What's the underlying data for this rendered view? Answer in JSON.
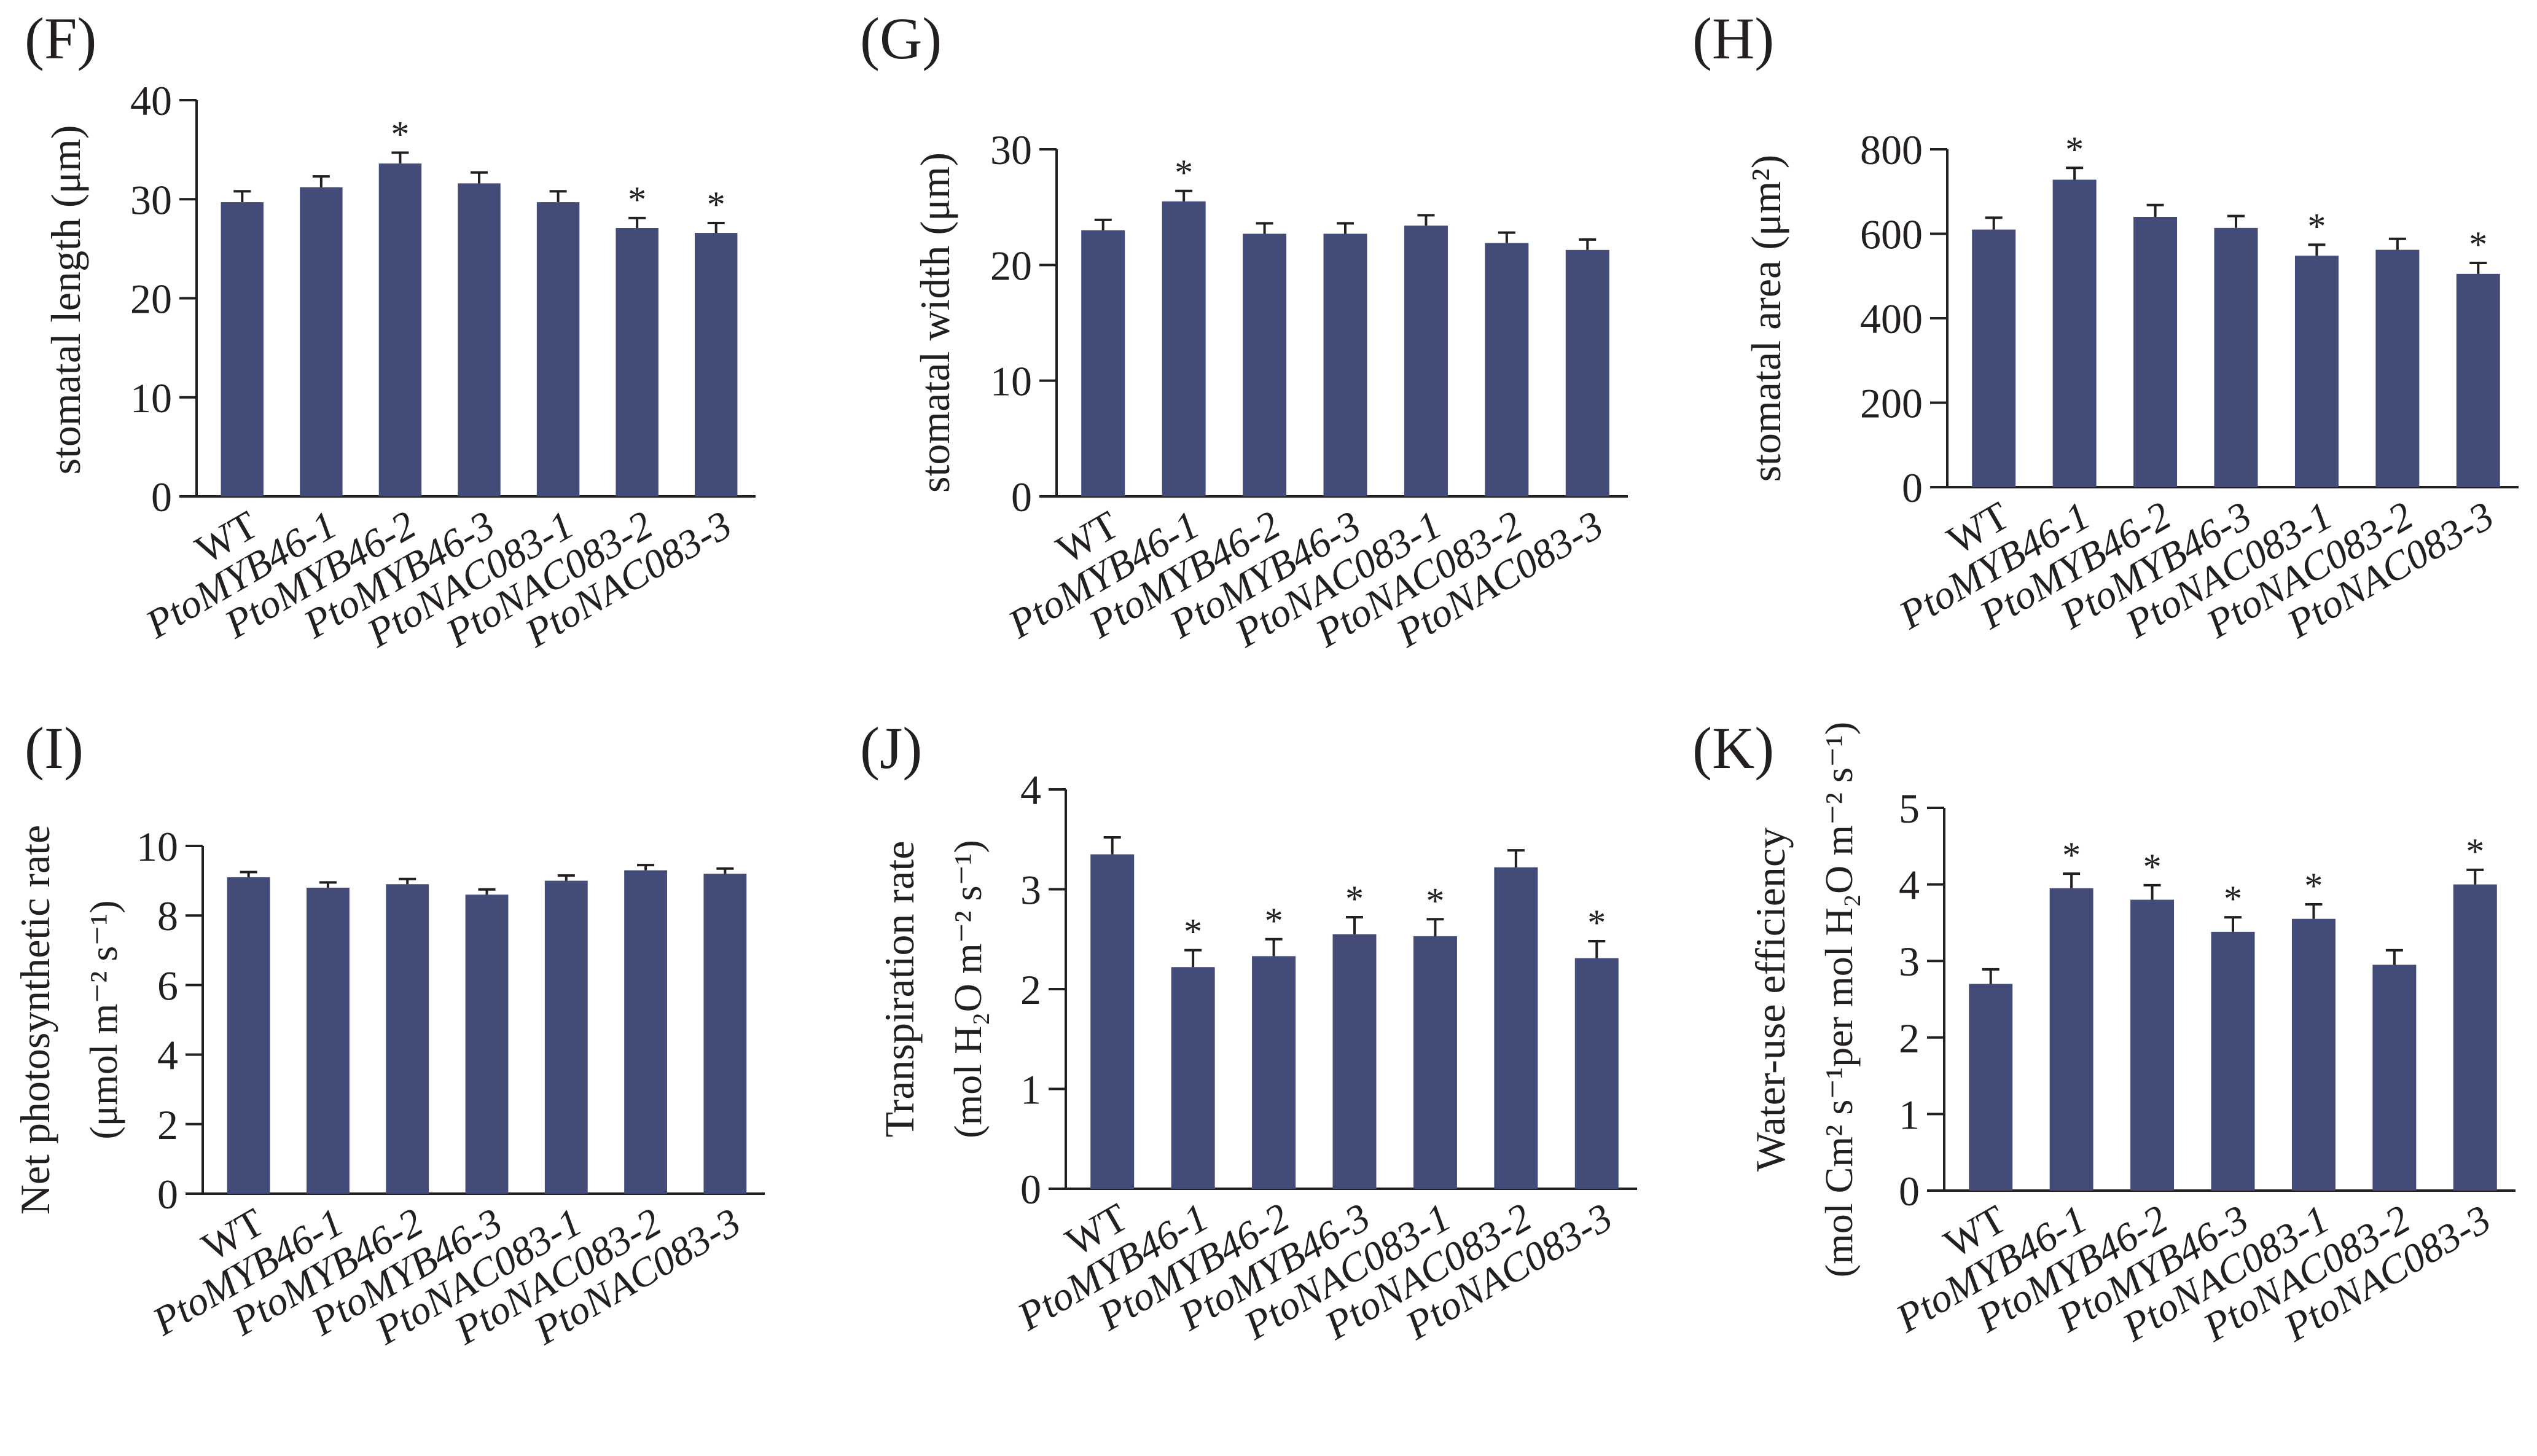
{
  "colors": {
    "bar": "#434c78",
    "axis": "#231f20",
    "text": "#231f20"
  },
  "categories_all": [
    "WT",
    "PtoMYB46-1",
    "PtoMYB46-2",
    "PtoMYB46-3",
    "PtoNAC083-1",
    "PtoNAC083-2",
    "PtoNAC083-3"
  ],
  "chart_data": [
    {
      "panel": "(F)",
      "type": "bar",
      "ylabel": "stomatal length (μm)",
      "categories": [
        "WT",
        "PtoMYB46-1",
        "PtoMYB46-2",
        "PtoMYB46-3",
        "PtoNAC083-1",
        "PtoNAC083-2",
        "PtoNAC083-3"
      ],
      "values": [
        29.7,
        31.2,
        33.6,
        31.6,
        29.7,
        27.1,
        26.6
      ],
      "errors": [
        1.1,
        1.1,
        1.1,
        1.1,
        1.1,
        1.0,
        1.0
      ],
      "significant": [
        false,
        false,
        true,
        false,
        false,
        true,
        true
      ],
      "ylim": [
        0,
        40
      ],
      "yticks": [
        0,
        10,
        20,
        30,
        40
      ]
    },
    {
      "panel": "(G)",
      "type": "bar",
      "ylabel": "stomatal width (μm)",
      "categories": [
        "WT",
        "PtoMYB46-1",
        "PtoMYB46-2",
        "PtoMYB46-3",
        "PtoNAC083-1",
        "PtoNAC083-2",
        "PtoNAC083-3"
      ],
      "values": [
        23.0,
        25.5,
        22.7,
        22.7,
        23.4,
        21.9,
        21.3
      ],
      "errors": [
        0.9,
        0.9,
        0.9,
        0.9,
        0.9,
        0.9,
        0.9
      ],
      "significant": [
        false,
        true,
        false,
        false,
        false,
        false,
        false
      ],
      "ylim": [
        0,
        30
      ],
      "yticks": [
        0,
        10,
        20,
        30
      ]
    },
    {
      "panel": "(H)",
      "type": "bar",
      "ylabel": "stomatal area (μm²)",
      "categories": [
        "WT",
        "PtoMYB46-1",
        "PtoMYB46-2",
        "PtoMYB46-3",
        "PtoNAC083-1",
        "PtoNAC083-2",
        "PtoNAC083-3"
      ],
      "values": [
        610,
        728,
        640,
        614,
        548,
        562,
        505
      ],
      "errors": [
        28,
        28,
        28,
        28,
        26,
        26,
        26
      ],
      "significant": [
        false,
        true,
        false,
        false,
        true,
        false,
        true
      ],
      "ylim": [
        0,
        800
      ],
      "yticks": [
        0,
        200,
        400,
        600,
        800
      ]
    },
    {
      "panel": "(I)",
      "type": "bar",
      "ylabel_line1": "Net photosynthetic rate",
      "ylabel_line2": "(μmol m⁻² s⁻¹)",
      "categories": [
        "WT",
        "PtoMYB46-1",
        "PtoMYB46-2",
        "PtoMYB46-3",
        "PtoNAC083-1",
        "PtoNAC083-2",
        "PtoNAC083-3"
      ],
      "values": [
        9.1,
        8.8,
        8.9,
        8.6,
        9.0,
        9.3,
        9.2
      ],
      "errors": [
        0.15,
        0.15,
        0.15,
        0.15,
        0.15,
        0.15,
        0.15
      ],
      "significant": [
        false,
        false,
        false,
        false,
        false,
        false,
        false
      ],
      "ylim": [
        0,
        10
      ],
      "yticks": [
        0,
        2,
        4,
        6,
        8,
        10
      ]
    },
    {
      "panel": "(J)",
      "type": "bar",
      "ylabel_line1": "Transpiration rate",
      "ylabel_line2": "(mol H₂O m⁻² s⁻¹)",
      "categories": [
        "WT",
        "PtoMYB46-1",
        "PtoMYB46-2",
        "PtoMYB46-3",
        "PtoNAC083-1",
        "PtoNAC083-2",
        "PtoNAC083-3"
      ],
      "values": [
        3.35,
        2.22,
        2.33,
        2.55,
        2.53,
        3.22,
        2.31
      ],
      "errors": [
        0.17,
        0.17,
        0.17,
        0.17,
        0.17,
        0.17,
        0.17
      ],
      "significant": [
        false,
        true,
        true,
        true,
        true,
        false,
        true
      ],
      "ylim": [
        0,
        4
      ],
      "yticks": [
        0,
        1,
        2,
        3,
        4
      ]
    },
    {
      "panel": "(K)",
      "type": "bar",
      "ylabel_line1": "Water-use efficiency",
      "ylabel_line2": "(mol Cm² s⁻¹per mol H₂O m⁻² s⁻¹)",
      "categories": [
        "WT",
        "PtoMYB46-1",
        "PtoMYB46-2",
        "PtoMYB46-3",
        "PtoNAC083-1",
        "PtoNAC083-2",
        "PtoNAC083-3"
      ],
      "values": [
        2.7,
        3.95,
        3.8,
        3.38,
        3.55,
        2.95,
        4.0
      ],
      "errors": [
        0.19,
        0.19,
        0.19,
        0.19,
        0.19,
        0.19,
        0.19
      ],
      "significant": [
        false,
        true,
        true,
        true,
        true,
        false,
        true
      ],
      "ylim": [
        0,
        5
      ],
      "yticks": [
        0,
        1,
        2,
        3,
        4,
        5
      ]
    }
  ]
}
